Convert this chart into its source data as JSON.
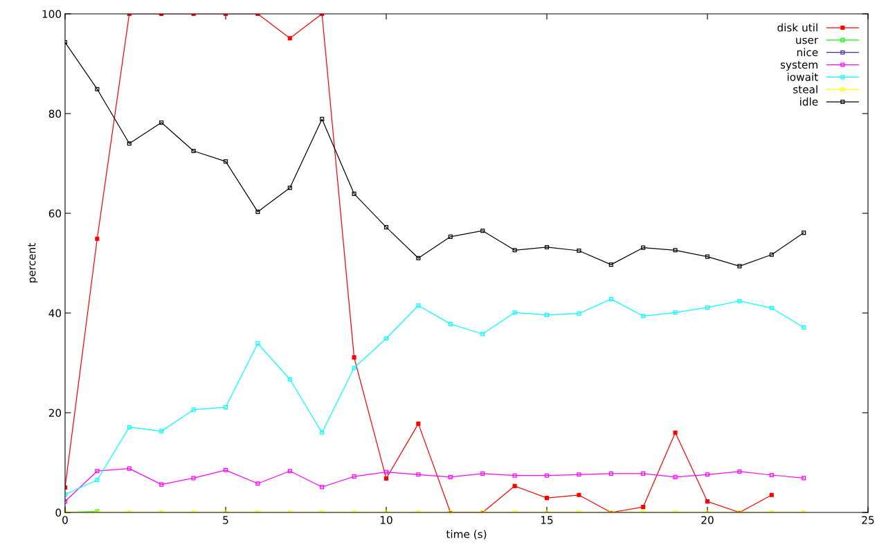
{
  "chart_data": {
    "type": "line",
    "xlabel": "time (s)",
    "ylabel": "percent",
    "x": [
      0,
      1,
      2,
      3,
      4,
      5,
      6,
      7,
      8,
      9,
      10,
      11,
      12,
      13,
      14,
      15,
      16,
      17,
      18,
      19,
      20,
      21,
      22,
      23
    ],
    "xlim": [
      0,
      25
    ],
    "xticks": [
      0,
      5,
      10,
      15,
      20,
      25
    ],
    "ylim": [
      0,
      100
    ],
    "yticks": [
      0,
      20,
      40,
      60,
      80,
      100
    ],
    "grid": false,
    "legend": "top right",
    "marker": "square",
    "line_style": "solid",
    "series": [
      {
        "name": "disk util",
        "color": "#ff0000",
        "x": [
          0,
          1,
          2,
          3,
          4,
          5,
          6,
          7,
          8,
          9,
          10,
          11,
          12,
          13,
          14,
          15,
          16,
          17,
          18,
          19,
          20,
          21,
          22
        ],
        "values": [
          5,
          54.9,
          100,
          100,
          100,
          100,
          100,
          95.1,
          100,
          31.1,
          6.8,
          17.8,
          0,
          0,
          5.3,
          2.9,
          3.5,
          0,
          1.1,
          16,
          2.2,
          0,
          3.5
        ]
      },
      {
        "name": "user",
        "color": "#00ff00",
        "values": [
          0,
          0.2,
          null,
          null,
          null,
          null,
          null,
          null,
          null,
          null,
          null,
          null,
          null,
          null,
          null,
          null,
          null,
          null,
          null,
          null,
          null,
          null,
          null,
          null
        ]
      },
      {
        "name": "nice",
        "color": "#3333aa",
        "values": [
          null,
          null,
          null,
          null,
          null,
          null,
          null,
          null,
          null,
          null,
          null,
          null,
          null,
          null,
          null,
          null,
          null,
          null,
          null,
          null,
          null,
          null,
          null,
          null
        ]
      },
      {
        "name": "system",
        "color": "#ff00ff",
        "values": [
          2.2,
          8.3,
          8.8,
          5.6,
          6.9,
          8.5,
          5.8,
          8.3,
          5.1,
          7.2,
          8.1,
          7.6,
          7.1,
          7.8,
          7.4,
          7.4,
          7.6,
          7.8,
          7.8,
          7.1,
          7.6,
          8.2,
          7.5,
          6.9
        ]
      },
      {
        "name": "iowait",
        "color": "#00ffff",
        "values": [
          3.6,
          6.5,
          17.1,
          16.3,
          20.6,
          21.1,
          33.9,
          26.7,
          16,
          29,
          34.9,
          41.5,
          37.8,
          35.8,
          40.1,
          39.6,
          39.9,
          42.8,
          39.4,
          40.1,
          41.1,
          42.4,
          41,
          37.1
        ]
      },
      {
        "name": "steal",
        "color": "#ffff00",
        "values": [
          0,
          0,
          0,
          0,
          0,
          0,
          0,
          0,
          0,
          0,
          0,
          0,
          0,
          0,
          0,
          0,
          0,
          0,
          0,
          0,
          0,
          0,
          0,
          0
        ]
      },
      {
        "name": "idle",
        "color": "#000000",
        "values": [
          94.3,
          84.9,
          74,
          78.2,
          72.5,
          70.4,
          60.3,
          65.1,
          78.9,
          63.9,
          57.2,
          51,
          55.3,
          56.5,
          52.6,
          53.2,
          52.5,
          49.7,
          53.1,
          52.6,
          51.3,
          49.4,
          51.7,
          56.1
        ]
      }
    ]
  }
}
